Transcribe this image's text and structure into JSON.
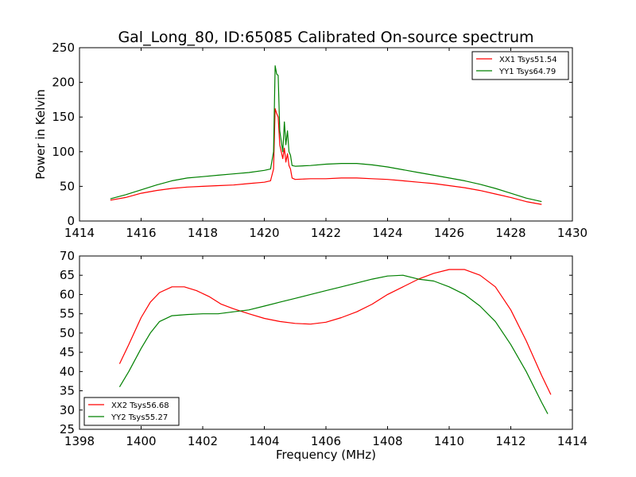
{
  "title": "Gal_Long_80, ID:65085 Calibrated On-source spectrum",
  "chart_data": [
    {
      "type": "line",
      "xlabel": "",
      "ylabel": "Power in Kelvin",
      "xlim": [
        1414,
        1430
      ],
      "ylim": [
        0,
        250
      ],
      "xticks": [
        1414,
        1416,
        1418,
        1420,
        1422,
        1424,
        1426,
        1428,
        1430
      ],
      "yticks": [
        0,
        50,
        100,
        150,
        200,
        250
      ],
      "legend": "top-right",
      "series": [
        {
          "name": "XX1 Tsys51.54",
          "color": "#ff0000",
          "points": [
            [
              1415.0,
              30
            ],
            [
              1415.5,
              34
            ],
            [
              1416.0,
              40
            ],
            [
              1416.5,
              44
            ],
            [
              1417.0,
              47
            ],
            [
              1417.5,
              49
            ],
            [
              1418.0,
              50
            ],
            [
              1418.5,
              51
            ],
            [
              1419.0,
              52
            ],
            [
              1419.5,
              54
            ],
            [
              1420.0,
              56
            ],
            [
              1420.2,
              58
            ],
            [
              1420.3,
              75
            ],
            [
              1420.35,
              162
            ],
            [
              1420.4,
              155
            ],
            [
              1420.45,
              150
            ],
            [
              1420.5,
              110
            ],
            [
              1420.6,
              90
            ],
            [
              1420.65,
              105
            ],
            [
              1420.7,
              85
            ],
            [
              1420.75,
              97
            ],
            [
              1420.8,
              80
            ],
            [
              1420.85,
              75
            ],
            [
              1420.9,
              62
            ],
            [
              1421.0,
              60
            ],
            [
              1421.5,
              61
            ],
            [
              1422.0,
              61
            ],
            [
              1422.5,
              62
            ],
            [
              1423.0,
              62
            ],
            [
              1423.5,
              61
            ],
            [
              1424.0,
              60
            ],
            [
              1424.5,
              58
            ],
            [
              1425.0,
              56
            ],
            [
              1425.5,
              54
            ],
            [
              1426.0,
              51
            ],
            [
              1426.5,
              48
            ],
            [
              1427.0,
              44
            ],
            [
              1427.5,
              39
            ],
            [
              1428.0,
              34
            ],
            [
              1428.5,
              28
            ],
            [
              1429.0,
              24
            ]
          ]
        },
        {
          "name": "YY1 Tsys64.79",
          "color": "#008000",
          "points": [
            [
              1415.0,
              32
            ],
            [
              1415.5,
              38
            ],
            [
              1416.0,
              45
            ],
            [
              1416.5,
              52
            ],
            [
              1417.0,
              58
            ],
            [
              1417.5,
              62
            ],
            [
              1418.0,
              64
            ],
            [
              1418.5,
              66
            ],
            [
              1419.0,
              68
            ],
            [
              1419.5,
              70
            ],
            [
              1420.0,
              73
            ],
            [
              1420.2,
              75
            ],
            [
              1420.3,
              100
            ],
            [
              1420.35,
              224
            ],
            [
              1420.4,
              212
            ],
            [
              1420.45,
              210
            ],
            [
              1420.5,
              130
            ],
            [
              1420.6,
              100
            ],
            [
              1420.65,
              143
            ],
            [
              1420.7,
              110
            ],
            [
              1420.75,
              130
            ],
            [
              1420.8,
              100
            ],
            [
              1420.85,
              95
            ],
            [
              1420.9,
              80
            ],
            [
              1421.0,
              79
            ],
            [
              1421.5,
              80
            ],
            [
              1422.0,
              82
            ],
            [
              1422.5,
              83
            ],
            [
              1423.0,
              83
            ],
            [
              1423.5,
              81
            ],
            [
              1424.0,
              78
            ],
            [
              1424.5,
              74
            ],
            [
              1425.0,
              70
            ],
            [
              1425.5,
              66
            ],
            [
              1426.0,
              62
            ],
            [
              1426.5,
              58
            ],
            [
              1427.0,
              53
            ],
            [
              1427.5,
              47
            ],
            [
              1428.0,
              40
            ],
            [
              1428.5,
              33
            ],
            [
              1429.0,
              28
            ]
          ]
        }
      ]
    },
    {
      "type": "line",
      "xlabel": "Frequency (MHz)",
      "ylabel": "",
      "xlim": [
        1398,
        1414
      ],
      "ylim": [
        25,
        70
      ],
      "xticks": [
        1398,
        1400,
        1402,
        1404,
        1406,
        1408,
        1410,
        1412,
        1414
      ],
      "yticks": [
        25,
        30,
        35,
        40,
        45,
        50,
        55,
        60,
        65,
        70
      ],
      "legend": "bottom-left",
      "series": [
        {
          "name": "XX2 Tsys56.68",
          "color": "#ff0000",
          "points": [
            [
              1399.3,
              42
            ],
            [
              1399.6,
              47
            ],
            [
              1400.0,
              54
            ],
            [
              1400.3,
              58
            ],
            [
              1400.6,
              60.5
            ],
            [
              1401.0,
              62
            ],
            [
              1401.4,
              62
            ],
            [
              1401.8,
              61
            ],
            [
              1402.2,
              59.5
            ],
            [
              1402.6,
              57.5
            ],
            [
              1403.0,
              56.3
            ],
            [
              1403.5,
              55
            ],
            [
              1404.0,
              53.8
            ],
            [
              1404.5,
              53
            ],
            [
              1405.0,
              52.5
            ],
            [
              1405.5,
              52.3
            ],
            [
              1406.0,
              52.8
            ],
            [
              1406.5,
              54
            ],
            [
              1407.0,
              55.5
            ],
            [
              1407.5,
              57.5
            ],
            [
              1408.0,
              60
            ],
            [
              1408.5,
              62
            ],
            [
              1409.0,
              64
            ],
            [
              1409.5,
              65.5
            ],
            [
              1410.0,
              66.5
            ],
            [
              1410.5,
              66.5
            ],
            [
              1411.0,
              65
            ],
            [
              1411.5,
              62
            ],
            [
              1412.0,
              56
            ],
            [
              1412.5,
              48
            ],
            [
              1413.0,
              39
            ],
            [
              1413.3,
              34
            ]
          ]
        },
        {
          "name": "YY2 Tsys55.27",
          "color": "#008000",
          "points": [
            [
              1399.3,
              36
            ],
            [
              1399.6,
              40
            ],
            [
              1400.0,
              46
            ],
            [
              1400.3,
              50
            ],
            [
              1400.6,
              53
            ],
            [
              1401.0,
              54.5
            ],
            [
              1401.5,
              54.8
            ],
            [
              1402.0,
              55
            ],
            [
              1402.5,
              55
            ],
            [
              1403.0,
              55.5
            ],
            [
              1403.5,
              56
            ],
            [
              1404.0,
              57
            ],
            [
              1404.5,
              58
            ],
            [
              1405.0,
              59
            ],
            [
              1405.5,
              60
            ],
            [
              1406.0,
              61
            ],
            [
              1406.5,
              62
            ],
            [
              1407.0,
              63
            ],
            [
              1407.5,
              64
            ],
            [
              1408.0,
              64.8
            ],
            [
              1408.5,
              65
            ],
            [
              1409.0,
              64
            ],
            [
              1409.5,
              63.5
            ],
            [
              1410.0,
              62
            ],
            [
              1410.5,
              60
            ],
            [
              1411.0,
              57
            ],
            [
              1411.5,
              53
            ],
            [
              1412.0,
              47
            ],
            [
              1412.5,
              40
            ],
            [
              1413.0,
              32
            ],
            [
              1413.2,
              29
            ]
          ]
        }
      ]
    }
  ]
}
